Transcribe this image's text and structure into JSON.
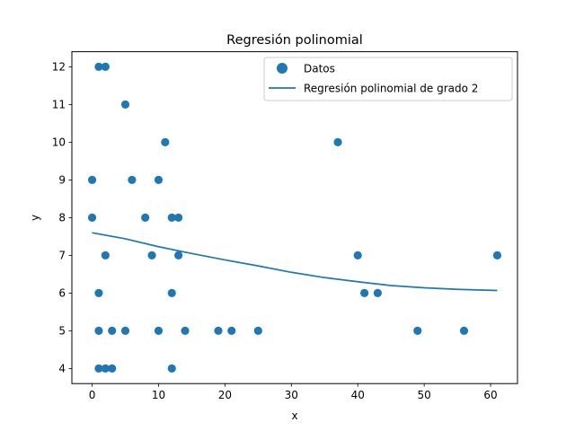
{
  "chart_data": {
    "type": "scatter",
    "title": "Regresión polinomial",
    "xlabel": "x",
    "ylabel": "y",
    "xlim": [
      -3.05,
      64.05
    ],
    "ylim": [
      3.6,
      12.4
    ],
    "xticks": [
      0,
      10,
      20,
      30,
      40,
      50,
      60
    ],
    "yticks": [
      4,
      5,
      6,
      7,
      8,
      9,
      10,
      11,
      12
    ],
    "grid": false,
    "legend": {
      "position": "top-right",
      "entries": [
        "Datos",
        "Regresión polinomial de grado 2"
      ]
    },
    "series": [
      {
        "name": "Datos",
        "type": "scatter",
        "color": "#1f77b4",
        "points": [
          [
            1,
            12
          ],
          [
            2,
            12
          ],
          [
            5,
            11
          ],
          [
            11,
            10
          ],
          [
            37,
            10
          ],
          [
            0,
            9
          ],
          [
            6,
            9
          ],
          [
            10,
            9
          ],
          [
            0,
            8
          ],
          [
            8,
            8
          ],
          [
            12,
            8
          ],
          [
            13,
            8
          ],
          [
            2,
            7
          ],
          [
            9,
            7
          ],
          [
            13,
            7
          ],
          [
            40,
            7
          ],
          [
            61,
            7
          ],
          [
            1,
            6
          ],
          [
            12,
            6
          ],
          [
            41,
            6
          ],
          [
            43,
            6
          ],
          [
            1,
            5
          ],
          [
            3,
            5
          ],
          [
            5,
            5
          ],
          [
            10,
            5
          ],
          [
            14,
            5
          ],
          [
            19,
            5
          ],
          [
            21,
            5
          ],
          [
            25,
            5
          ],
          [
            49,
            5
          ],
          [
            56,
            5
          ],
          [
            1,
            4
          ],
          [
            2,
            4
          ],
          [
            3,
            4
          ],
          [
            12,
            4
          ]
        ]
      },
      {
        "name": "Regresión polinomial de grado 2",
        "type": "line",
        "color": "#1f77b4",
        "points": [
          [
            0,
            7.6
          ],
          [
            5,
            7.44
          ],
          [
            10,
            7.23
          ],
          [
            15,
            7.05
          ],
          [
            20,
            6.88
          ],
          [
            25,
            6.72
          ],
          [
            30,
            6.55
          ],
          [
            35,
            6.41
          ],
          [
            40,
            6.3
          ],
          [
            45,
            6.2
          ],
          [
            50,
            6.14
          ],
          [
            55,
            6.1
          ],
          [
            61,
            6.07
          ]
        ]
      }
    ]
  }
}
